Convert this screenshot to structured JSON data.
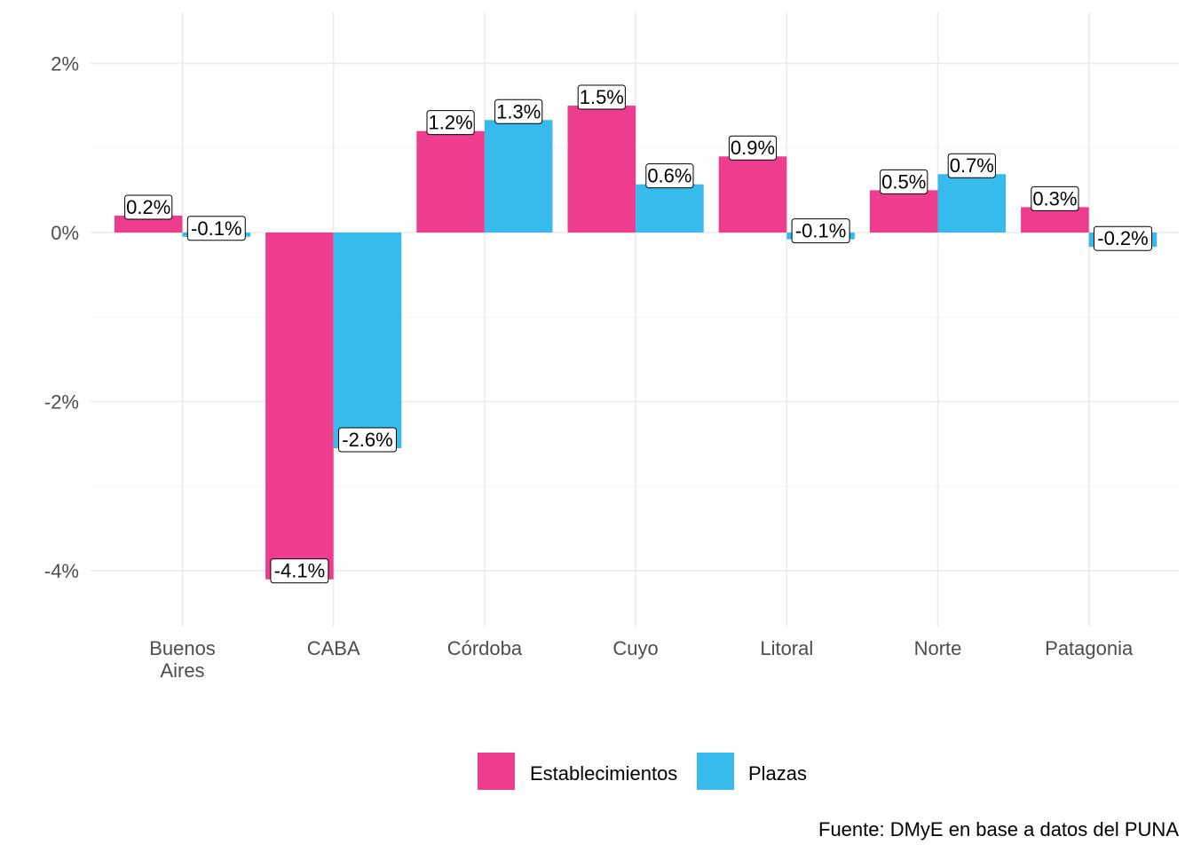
{
  "chart_data": {
    "type": "bar",
    "title": "",
    "xlabel": "",
    "ylabel": "",
    "categories": [
      [
        "Buenos",
        "Aires"
      ],
      [
        "CABA"
      ],
      [
        "Córdoba"
      ],
      [
        "Cuyo"
      ],
      [
        "Litoral"
      ],
      [
        "Norte"
      ],
      [
        "Patagonia"
      ]
    ],
    "series": [
      {
        "name": "Establecimientos",
        "color": "#EE3D8F",
        "values": [
          0.2,
          -4.1,
          1.2,
          1.5,
          0.9,
          0.5,
          0.3
        ],
        "labels": [
          "0.2%",
          "-4.1%",
          "1.2%",
          "1.5%",
          "0.9%",
          "0.5%",
          "0.3%"
        ]
      },
      {
        "name": "Plazas",
        "color": "#37BBED",
        "values": [
          -0.05,
          -2.55,
          1.33,
          0.57,
          -0.08,
          0.69,
          -0.17
        ],
        "labels": [
          "-0.1%",
          "-2.6%",
          "1.3%",
          "0.6%",
          "-0.1%",
          "0.7%",
          "-0.2%"
        ]
      }
    ],
    "yticks": [
      2,
      0,
      -2,
      -4
    ],
    "ytick_labels": [
      "2%",
      "0%",
      "-2%",
      "-4%"
    ],
    "ylim": [
      -4.6,
      2.6
    ],
    "grid": true,
    "legend_position": "bottom",
    "caption": "Fuente: DMyE en base a datos del PUNA"
  }
}
